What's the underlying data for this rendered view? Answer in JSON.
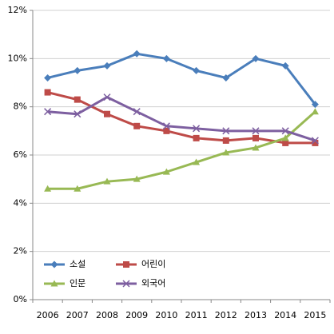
{
  "chart_data": {
    "type": "line",
    "categories": [
      "2006",
      "2007",
      "2008",
      "2009",
      "2010",
      "2011",
      "2012",
      "2013",
      "2014",
      "2015"
    ],
    "series": [
      {
        "name": "소설",
        "color": "#4a7ebb",
        "marker": "diamond",
        "values": [
          9.2,
          9.5,
          9.7,
          10.2,
          10.0,
          9.5,
          9.2,
          10.0,
          9.7,
          8.1
        ]
      },
      {
        "name": "어린이",
        "color": "#be4b48",
        "marker": "square",
        "values": [
          8.6,
          8.3,
          7.7,
          7.2,
          7.0,
          6.7,
          6.6,
          6.7,
          6.5,
          6.5
        ]
      },
      {
        "name": "인문",
        "color": "#98b954",
        "marker": "triangle",
        "values": [
          4.6,
          4.6,
          4.9,
          5.0,
          5.3,
          5.7,
          6.1,
          6.3,
          6.7,
          7.8
        ]
      },
      {
        "name": "외국어",
        "color": "#7d5fa0",
        "marker": "x",
        "values": [
          7.8,
          7.7,
          8.4,
          7.8,
          7.2,
          7.1,
          7.0,
          7.0,
          7.0,
          6.6
        ]
      }
    ],
    "ylim": [
      0,
      12
    ],
    "yticks": [
      {
        "value": 0,
        "label": "0%"
      },
      {
        "value": 2,
        "label": "2%"
      },
      {
        "value": 4,
        "label": "4%"
      },
      {
        "value": 6,
        "label": "6%"
      },
      {
        "value": 8,
        "label": "8%"
      },
      {
        "value": 10,
        "label": "10%"
      },
      {
        "value": 12,
        "label": "12%"
      }
    ],
    "grid": true,
    "legend": "lower left"
  }
}
